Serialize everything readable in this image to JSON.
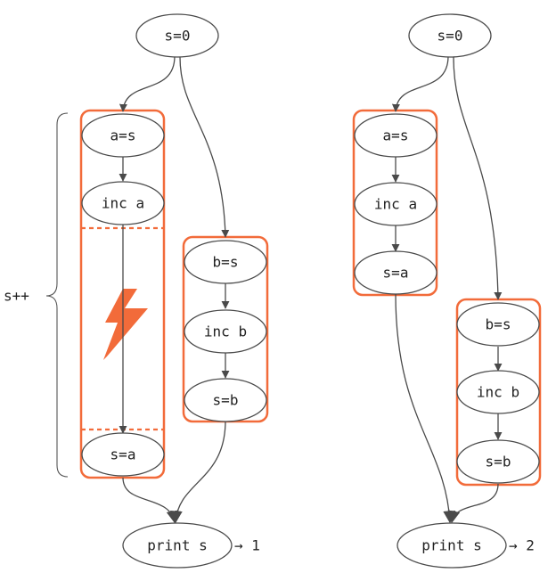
{
  "accent_color": "#f26b3a",
  "left": {
    "start": "s=0",
    "a_read": "a=s",
    "a_inc": "inc a",
    "a_write": "s=a",
    "b_read": "b=s",
    "b_inc": "inc b",
    "b_write": "s=b",
    "print": "print s",
    "result": "→ 1",
    "brace_label": "s++",
    "interrupt_icon": "lightning-bolt-icon"
  },
  "right": {
    "start": "s=0",
    "a_read": "a=s",
    "a_inc": "inc a",
    "a_write": "s=a",
    "b_read": "b=s",
    "b_inc": "inc b",
    "b_write": "s=b",
    "print": "print s",
    "result": "→ 2"
  }
}
